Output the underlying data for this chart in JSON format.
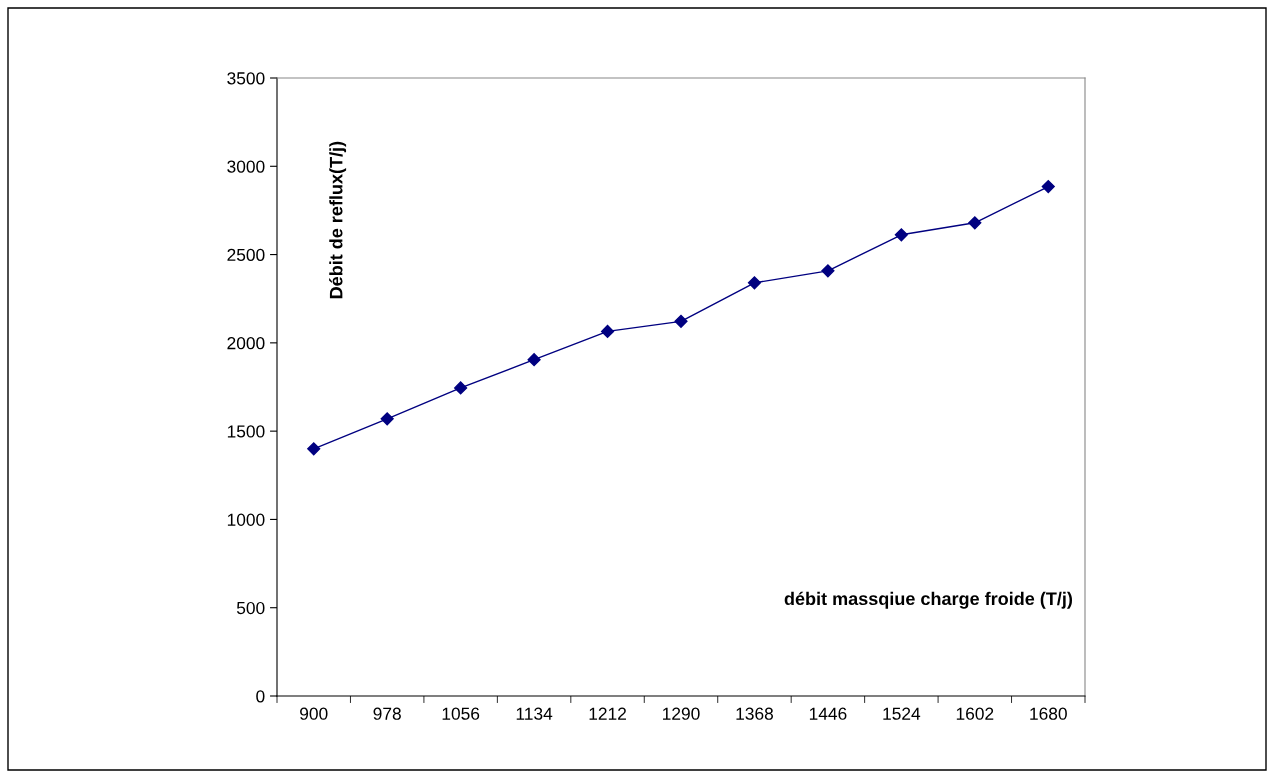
{
  "chart_data": {
    "type": "line",
    "xlabel": "débit massqiue charge froide (T/j)",
    "ylabel": "Débit de reflux(T/j)",
    "categories": [
      "900",
      "978",
      "1056",
      "1134",
      "1212",
      "1290",
      "1368",
      "1446",
      "1524",
      "1602",
      "1680"
    ],
    "series": [
      {
        "color": "#000080",
        "values": [
          1400,
          1570,
          1745,
          1905,
          2065,
          2122,
          2340,
          2408,
          2612,
          2680,
          2885
        ]
      }
    ],
    "ylim": [
      0,
      3500
    ],
    "yticks": [
      0,
      500,
      1000,
      1500,
      2000,
      2500,
      3000,
      3500
    ],
    "grid": false,
    "marker": "diamond",
    "line_style": "solid"
  }
}
